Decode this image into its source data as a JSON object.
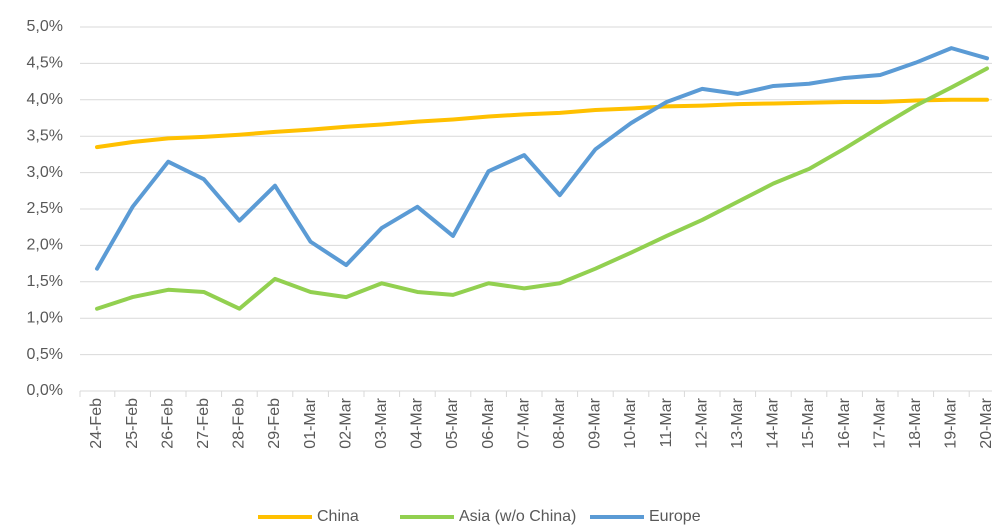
{
  "chart_data": {
    "type": "line",
    "categories": [
      "24-Feb",
      "25-Feb",
      "26-Feb",
      "27-Feb",
      "28-Feb",
      "29-Feb",
      "01-Mar",
      "02-Mar",
      "03-Mar",
      "04-Mar",
      "05-Mar",
      "06-Mar",
      "07-Mar",
      "08-Mar",
      "09-Mar",
      "10-Mar",
      "11-Mar",
      "12-Mar",
      "13-Mar",
      "14-Mar",
      "15-Mar",
      "16-Mar",
      "17-Mar",
      "18-Mar",
      "19-Mar",
      "20-Mar"
    ],
    "series": [
      {
        "name": "China",
        "color": "#ffc000",
        "values": [
          3.35,
          3.42,
          3.47,
          3.49,
          3.52,
          3.56,
          3.59,
          3.63,
          3.66,
          3.7,
          3.73,
          3.77,
          3.8,
          3.82,
          3.86,
          3.88,
          3.91,
          3.92,
          3.94,
          3.95,
          3.96,
          3.97,
          3.97,
          3.99,
          4.0,
          4.0
        ]
      },
      {
        "name": "Asia (w/o China)",
        "color": "#92d050",
        "values": [
          1.13,
          1.29,
          1.39,
          1.36,
          1.13,
          1.54,
          1.36,
          1.29,
          1.48,
          1.36,
          1.32,
          1.48,
          1.41,
          1.48,
          1.68,
          1.9,
          2.13,
          2.35,
          2.6,
          2.85,
          3.05,
          3.33,
          3.63,
          3.92,
          4.17,
          4.43
        ]
      },
      {
        "name": "Europe",
        "color": "#5b9bd5",
        "values": [
          1.68,
          2.53,
          3.15,
          2.91,
          2.34,
          2.82,
          2.05,
          1.73,
          2.24,
          2.53,
          2.13,
          3.02,
          3.24,
          2.69,
          3.32,
          3.68,
          3.97,
          4.15,
          4.08,
          4.19,
          4.22,
          4.3,
          4.34,
          4.51,
          4.71,
          4.57
        ]
      }
    ],
    "ylim": [
      0,
      5
    ],
    "yticks": [
      {
        "value": 0,
        "label": "0,0%"
      },
      {
        "value": 0.5,
        "label": "0,5%"
      },
      {
        "value": 1,
        "label": "1,0%"
      },
      {
        "value": 1.5,
        "label": "1,5%"
      },
      {
        "value": 2,
        "label": "2,0%"
      },
      {
        "value": 2.5,
        "label": "2,5%"
      },
      {
        "value": 3,
        "label": "3,0%"
      },
      {
        "value": 3.5,
        "label": "3,5%"
      },
      {
        "value": 4,
        "label": "4,0%"
      },
      {
        "value": 4.5,
        "label": "4,5%"
      },
      {
        "value": 5,
        "label": "5,0%"
      }
    ],
    "grid": true,
    "legend": "bottom"
  }
}
